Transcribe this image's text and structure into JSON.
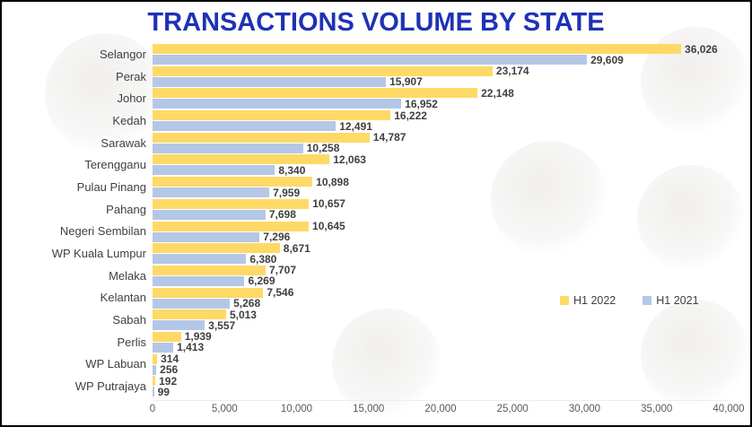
{
  "title": "TRANSACTIONS VOLUME BY STATE",
  "title_color": "#1F32B4",
  "legend": {
    "items": [
      {
        "label": "H1 2022",
        "color": "#FFD966"
      },
      {
        "label": "H1 2021",
        "color": "#B4C7E7"
      }
    ]
  },
  "axis": {
    "ticks": [
      "0",
      "5,000",
      "10,000",
      "15,000",
      "20,000",
      "25,000",
      "30,000",
      "35,000",
      "40,000"
    ]
  },
  "chart_data": {
    "type": "bar",
    "orientation": "horizontal",
    "title": "TRANSACTIONS VOLUME BY STATE",
    "xlabel": "",
    "ylabel": "",
    "xlim": [
      0,
      40000
    ],
    "xticks": [
      0,
      5000,
      10000,
      15000,
      20000,
      25000,
      30000,
      35000,
      40000
    ],
    "grid": false,
    "value_labels": "end-of-bar",
    "legend_position": "middle-right",
    "categories": [
      "Selangor",
      "Perak",
      "Johor",
      "Kedah",
      "Sarawak",
      "Terengganu",
      "Pulau Pinang",
      "Pahang",
      "Negeri Sembilan",
      "WP Kuala Lumpur",
      "Melaka",
      "Kelantan",
      "Sabah",
      "Perlis",
      "WP Labuan",
      "WP Putrajaya"
    ],
    "series": [
      {
        "name": "H1 2022",
        "color": "#FFD966",
        "values": [
          36026,
          23174,
          22148,
          16222,
          14787,
          12063,
          10898,
          10657,
          10645,
          8671,
          7707,
          7546,
          5013,
          1939,
          314,
          192
        ]
      },
      {
        "name": "H1 2021",
        "color": "#B4C7E7",
        "values": [
          29609,
          15907,
          16952,
          12491,
          10258,
          8340,
          7959,
          7698,
          7296,
          6380,
          6269,
          5268,
          3557,
          1413,
          256,
          99
        ]
      }
    ]
  }
}
